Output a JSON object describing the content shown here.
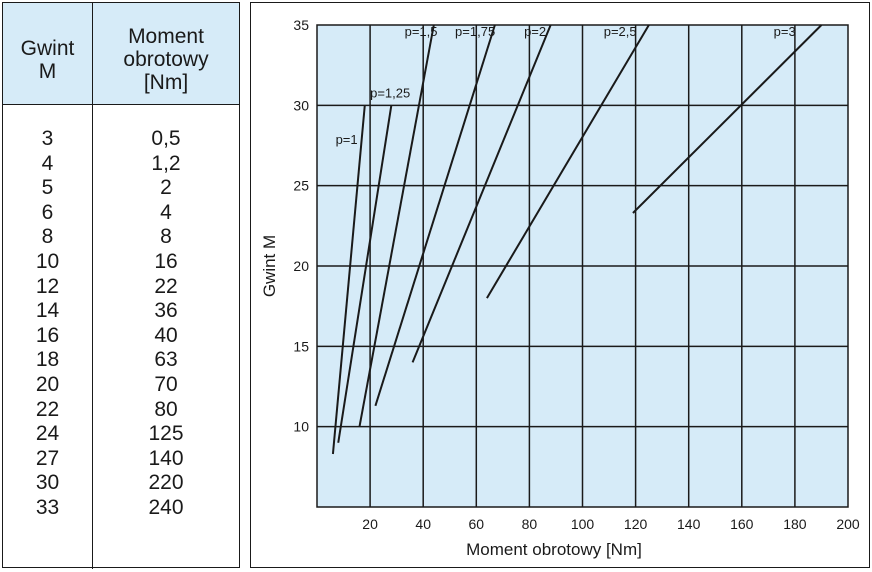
{
  "table": {
    "header": {
      "col1": [
        "Gwint",
        "M"
      ],
      "col2": [
        "Moment",
        "obrotowy",
        "[Nm]"
      ]
    },
    "rows": [
      [
        "3",
        "0,5"
      ],
      [
        "4",
        "1,2"
      ],
      [
        "5",
        "2"
      ],
      [
        "6",
        "4"
      ],
      [
        "8",
        "8"
      ],
      [
        "10",
        "16"
      ],
      [
        "12",
        "22"
      ],
      [
        "14",
        "36"
      ],
      [
        "16",
        "40"
      ],
      [
        "18",
        "63"
      ],
      [
        "20",
        "70"
      ],
      [
        "22",
        "80"
      ],
      [
        "24",
        "125"
      ],
      [
        "27",
        "140"
      ],
      [
        "30",
        "220"
      ],
      [
        "33",
        "240"
      ]
    ]
  },
  "chart_data": {
    "type": "line",
    "xlabel": "Moment obrotowy [Nm]",
    "ylabel": "Gwint M",
    "xlim": [
      0,
      200
    ],
    "ylim": [
      5,
      35
    ],
    "xticks": [
      20,
      40,
      60,
      80,
      100,
      120,
      140,
      160,
      180,
      200
    ],
    "yticks": [
      10,
      15,
      20,
      25,
      30,
      35
    ],
    "grid": true,
    "background": "#d6ebf8",
    "series": [
      {
        "name": "p=1",
        "points": [
          [
            6,
            8.3
          ],
          [
            18,
            30
          ]
        ]
      },
      {
        "name": "p=1,25",
        "points": [
          [
            8,
            9
          ],
          [
            28,
            30
          ]
        ]
      },
      {
        "name": "p=1,5",
        "points": [
          [
            16,
            10
          ],
          [
            44,
            35
          ]
        ]
      },
      {
        "name": "p=1,75",
        "points": [
          [
            22,
            11.3
          ],
          [
            67,
            35
          ]
        ]
      },
      {
        "name": "p=2",
        "points": [
          [
            36,
            14
          ],
          [
            88,
            35
          ]
        ]
      },
      {
        "name": "p=2,5",
        "points": [
          [
            64,
            18
          ],
          [
            125,
            35
          ]
        ]
      },
      {
        "name": "p=3",
        "points": [
          [
            119,
            23.3
          ],
          [
            190,
            35
          ]
        ]
      }
    ],
    "labels": [
      {
        "text": "p=1",
        "at": [
          7,
          27.6
        ]
      },
      {
        "text": "p=1,25",
        "at": [
          20,
          30.5
        ]
      },
      {
        "text": "p=1,5",
        "at": [
          33,
          34.3
        ]
      },
      {
        "text": "p=1,75",
        "at": [
          52,
          34.3
        ]
      },
      {
        "text": "p=2",
        "at": [
          78,
          34.3
        ]
      },
      {
        "text": "p=2,5",
        "at": [
          108,
          34.3
        ]
      },
      {
        "text": "p=3",
        "at": [
          172,
          34.3
        ]
      }
    ]
  }
}
